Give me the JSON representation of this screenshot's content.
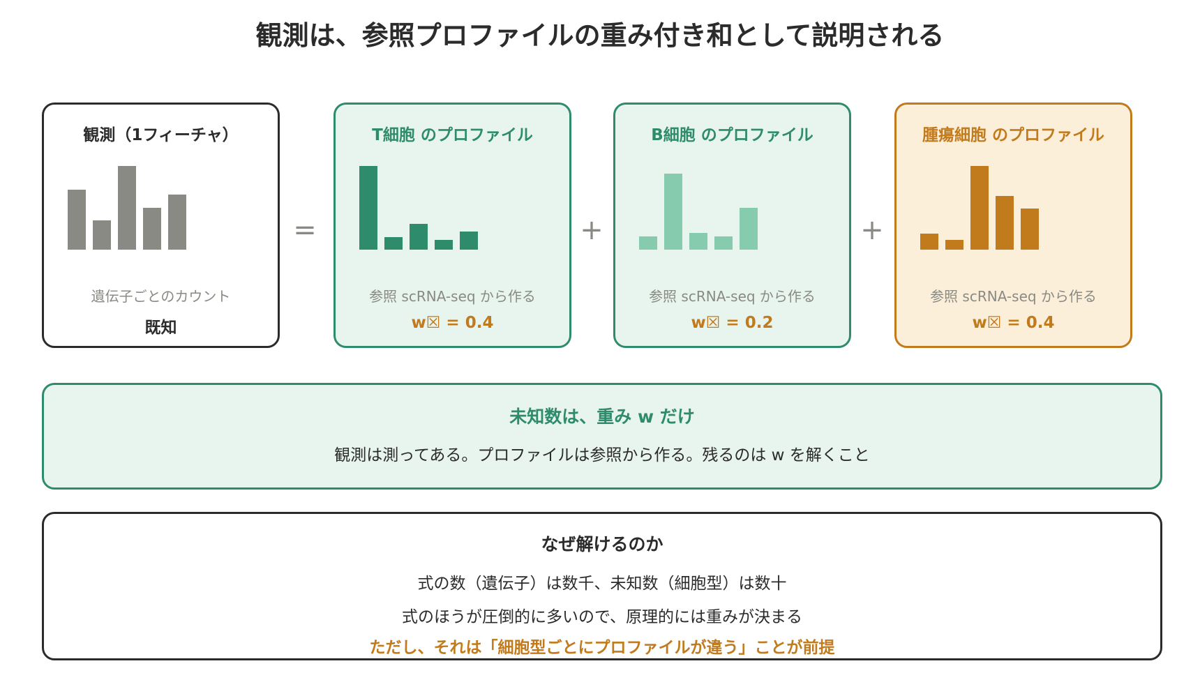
{
  "title": "観測は、参照プロファイルの重み付き和として説明される",
  "operators": {
    "equals": "=",
    "plus1": "+",
    "plus2": "+"
  },
  "cards": [
    {
      "title": "観測（1フィーチャ）",
      "subtitle": "遺伝子ごとのカウント",
      "weight_label": "既知",
      "bar_color": "#8a8a84",
      "bars": [
        0.72,
        0.35,
        1.0,
        0.5,
        0.66
      ]
    },
    {
      "title": "T細胞 のプロファイル",
      "subtitle": "参照 scRNA-seq から作る",
      "weight_label": "w☒ = 0.4",
      "bar_color": "#2e8b6b",
      "bars": [
        1.0,
        0.15,
        0.31,
        0.12,
        0.22
      ]
    },
    {
      "title": "B細胞 のプロファイル",
      "subtitle": "参照 scRNA-seq から作る",
      "weight_label": "w☒ = 0.2",
      "bar_color": "#86cbad",
      "bars": [
        0.16,
        0.91,
        0.2,
        0.16,
        0.5
      ]
    },
    {
      "title": "腫瘍細胞 のプロファイル",
      "subtitle": "参照 scRNA-seq から作る",
      "weight_label": "w☒ = 0.4",
      "bar_color": "#c17a1c",
      "bars": [
        0.19,
        0.12,
        1.0,
        0.64,
        0.49
      ]
    }
  ],
  "unknown_panel": {
    "title": "未知数は、重み w だけ",
    "text": "観測は測ってある。プロファイルは参照から作る。残るのは w を解くこと"
  },
  "why_panel": {
    "title": "なぜ解けるのか",
    "line1": "式の数（遺伝子）は数千、未知数（細胞型）は数十",
    "line2": "式のほうが圧倒的に多いので、原理的には重みが決まる",
    "line3": "ただし、それは「細胞型ごとにプロファイルが違う」ことが前提"
  }
}
